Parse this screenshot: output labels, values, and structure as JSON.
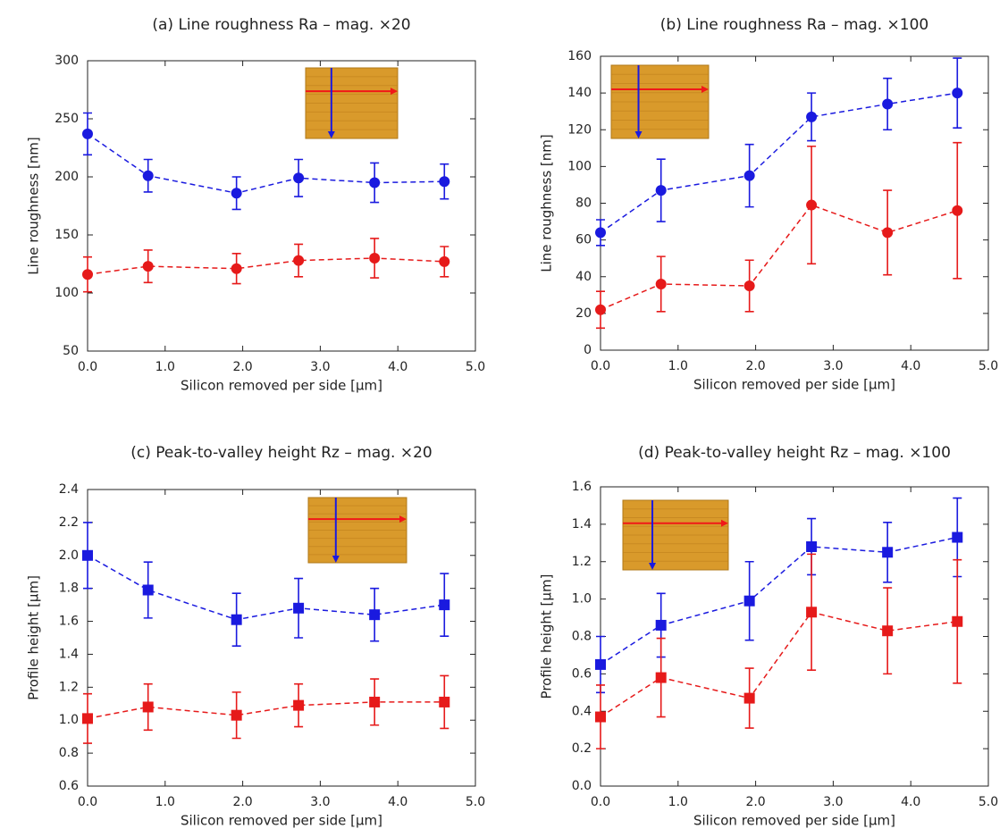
{
  "chart_data": [
    {
      "type": "line",
      "title": "(a) Line roughness Ra – mag. ×20",
      "xlabel": "Silicon removed per side [μm]",
      "ylabel": "Line roughness [nm]",
      "marker": "circle",
      "x": [
        0,
        0.78,
        1.92,
        2.72,
        3.7,
        4.6
      ],
      "xlim": [
        0,
        5
      ],
      "xticks": [
        {
          "value": 0,
          "label": "0.0"
        },
        {
          "value": 1,
          "label": "1.0"
        },
        {
          "value": 2,
          "label": "2.0"
        },
        {
          "value": 3,
          "label": "3.0"
        },
        {
          "value": 4,
          "label": "4.0"
        },
        {
          "value": 5,
          "label": "5.0"
        }
      ],
      "ylim": [
        50,
        300
      ],
      "yticks": [
        50,
        100,
        150,
        200,
        250,
        300
      ],
      "series": [
        {
          "color": "#1a1adf",
          "values": [
            237,
            201,
            186,
            199,
            195,
            196
          ],
          "errors": [
            18,
            14,
            14,
            16,
            17,
            15
          ]
        },
        {
          "color": "#e61a1a",
          "values": [
            116,
            123,
            121,
            128,
            130,
            127
          ],
          "errors": [
            15,
            14,
            13,
            14,
            17,
            13
          ]
        }
      ]
    },
    {
      "type": "line",
      "title": "(b) Line roughness Ra – mag. ×100",
      "xlabel": "Silicon removed per side [μm]",
      "ylabel": "Line roughness [nm]",
      "marker": "circle",
      "x": [
        0,
        0.78,
        1.92,
        2.72,
        3.7,
        4.6
      ],
      "xlim": [
        0,
        5
      ],
      "xticks": [
        {
          "value": 0,
          "label": "0.0"
        },
        {
          "value": 1,
          "label": "1.0"
        },
        {
          "value": 2,
          "label": "2.0"
        },
        {
          "value": 3,
          "label": "3.0"
        },
        {
          "value": 4,
          "label": "4.0"
        },
        {
          "value": 5,
          "label": "5.0"
        }
      ],
      "ylim": [
        0,
        160
      ],
      "yticks": [
        0,
        20,
        40,
        60,
        80,
        100,
        120,
        140,
        160
      ],
      "series": [
        {
          "color": "#1a1adf",
          "values": [
            64,
            87,
            95,
            127,
            134,
            140
          ],
          "errors": [
            7,
            17,
            17,
            13,
            14,
            19
          ]
        },
        {
          "color": "#e61a1a",
          "values": [
            22,
            36,
            35,
            79,
            64,
            76
          ],
          "errors": [
            10,
            15,
            14,
            32,
            23,
            37
          ]
        }
      ]
    },
    {
      "type": "line",
      "title": "(c) Peak-to-valley height Rz – mag. ×20",
      "xlabel": "Silicon removed per side [μm]",
      "ylabel": "Profile height [μm]",
      "marker": "square",
      "x": [
        0,
        0.78,
        1.92,
        2.72,
        3.7,
        4.6
      ],
      "xlim": [
        0,
        5
      ],
      "xticks": [
        {
          "value": 0,
          "label": "0.0"
        },
        {
          "value": 1,
          "label": "1.0"
        },
        {
          "value": 2,
          "label": "2.0"
        },
        {
          "value": 3,
          "label": "3.0"
        },
        {
          "value": 4,
          "label": "4.0"
        },
        {
          "value": 5,
          "label": "5.0"
        }
      ],
      "ylim": [
        0.6,
        2.4
      ],
      "yticks": [
        0.6,
        0.8,
        {
          "value": 1,
          "label": "1.0"
        },
        1.2,
        1.4,
        1.6,
        1.8,
        {
          "value": 2,
          "label": "2.0"
        },
        2.2,
        2.4
      ],
      "series": [
        {
          "color": "#1a1adf",
          "values": [
            2.0,
            1.79,
            1.61,
            1.68,
            1.64,
            1.7
          ],
          "errors": [
            0.2,
            0.17,
            0.16,
            0.18,
            0.16,
            0.19
          ]
        },
        {
          "color": "#e61a1a",
          "values": [
            1.01,
            1.08,
            1.03,
            1.09,
            1.11,
            1.11
          ],
          "errors": [
            0.15,
            0.14,
            0.14,
            0.13,
            0.14,
            0.16
          ]
        }
      ]
    },
    {
      "type": "line",
      "title": "(d) Peak-to-valley height Rz – mag. ×100",
      "xlabel": "Silicon removed per side [μm]",
      "ylabel": "Profile height [μm]",
      "marker": "square",
      "x": [
        0,
        0.78,
        1.92,
        2.72,
        3.7,
        4.6
      ],
      "xlim": [
        0,
        5
      ],
      "xticks": [
        {
          "value": 0,
          "label": "0.0"
        },
        {
          "value": 1,
          "label": "1.0"
        },
        {
          "value": 2,
          "label": "2.0"
        },
        {
          "value": 3,
          "label": "3.0"
        },
        {
          "value": 4,
          "label": "4.0"
        },
        {
          "value": 5,
          "label": "5.0"
        }
      ],
      "ylim": [
        0,
        1.6
      ],
      "yticks": [
        {
          "value": 0,
          "label": "0.0"
        },
        0.2,
        0.4,
        0.6,
        0.8,
        {
          "value": 1,
          "label": "1.0"
        },
        1.2,
        1.4,
        1.6
      ],
      "series": [
        {
          "color": "#1a1adf",
          "values": [
            0.65,
            0.86,
            0.99,
            1.28,
            1.25,
            1.33
          ],
          "errors": [
            0.15,
            0.17,
            0.21,
            0.15,
            0.16,
            0.21
          ]
        },
        {
          "color": "#e61a1a",
          "values": [
            0.37,
            0.58,
            0.47,
            0.93,
            0.83,
            0.88
          ],
          "errors": [
            0.17,
            0.21,
            0.16,
            0.31,
            0.23,
            0.33
          ]
        }
      ]
    }
  ]
}
